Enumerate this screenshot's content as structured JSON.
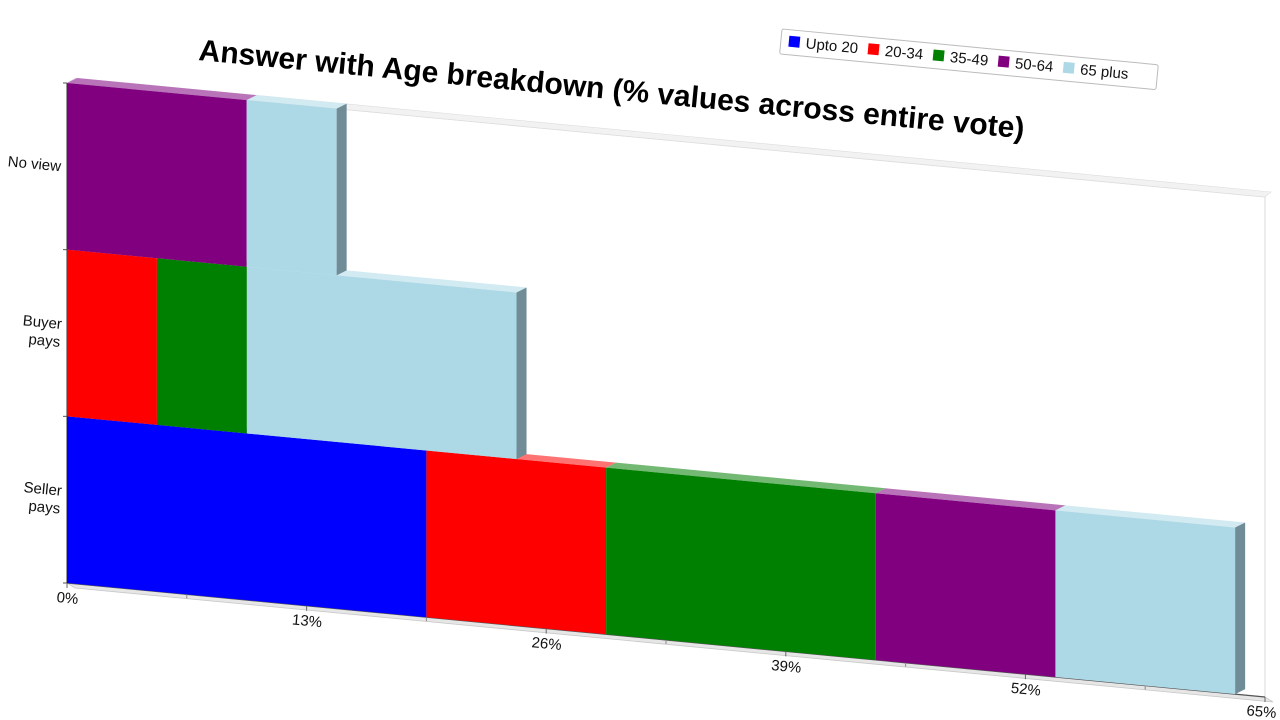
{
  "chart_data": {
    "type": "bar",
    "stacked": true,
    "orientation": "horizontal",
    "title": "Answer with Age breakdown (% values across entire vote)",
    "categories": [
      "Seller pays",
      "Buyer pays",
      "No view"
    ],
    "category_label_lines": [
      [
        "Seller",
        "pays"
      ],
      [
        "Buyer",
        "pays"
      ],
      [
        "No view"
      ]
    ],
    "series": [
      {
        "name": "Upto 20",
        "color": "#0000ff",
        "values": [
          19.5,
          0,
          0
        ]
      },
      {
        "name": "20-34",
        "color": "#ff0000",
        "values": [
          9.75,
          4.88,
          0
        ]
      },
      {
        "name": "35-49",
        "color": "#008000",
        "values": [
          14.63,
          4.88,
          0
        ]
      },
      {
        "name": "50-64",
        "color": "#800080",
        "values": [
          9.75,
          0,
          9.75
        ]
      },
      {
        "name": "65 plus",
        "color": "#add8e6",
        "values": [
          9.75,
          14.63,
          4.88
        ]
      }
    ],
    "xlim": [
      0,
      65
    ],
    "x_ticks": [
      "0%",
      "13%",
      "26%",
      "39%",
      "52%",
      "65%"
    ],
    "legend_position": "top-right",
    "grid": false
  }
}
